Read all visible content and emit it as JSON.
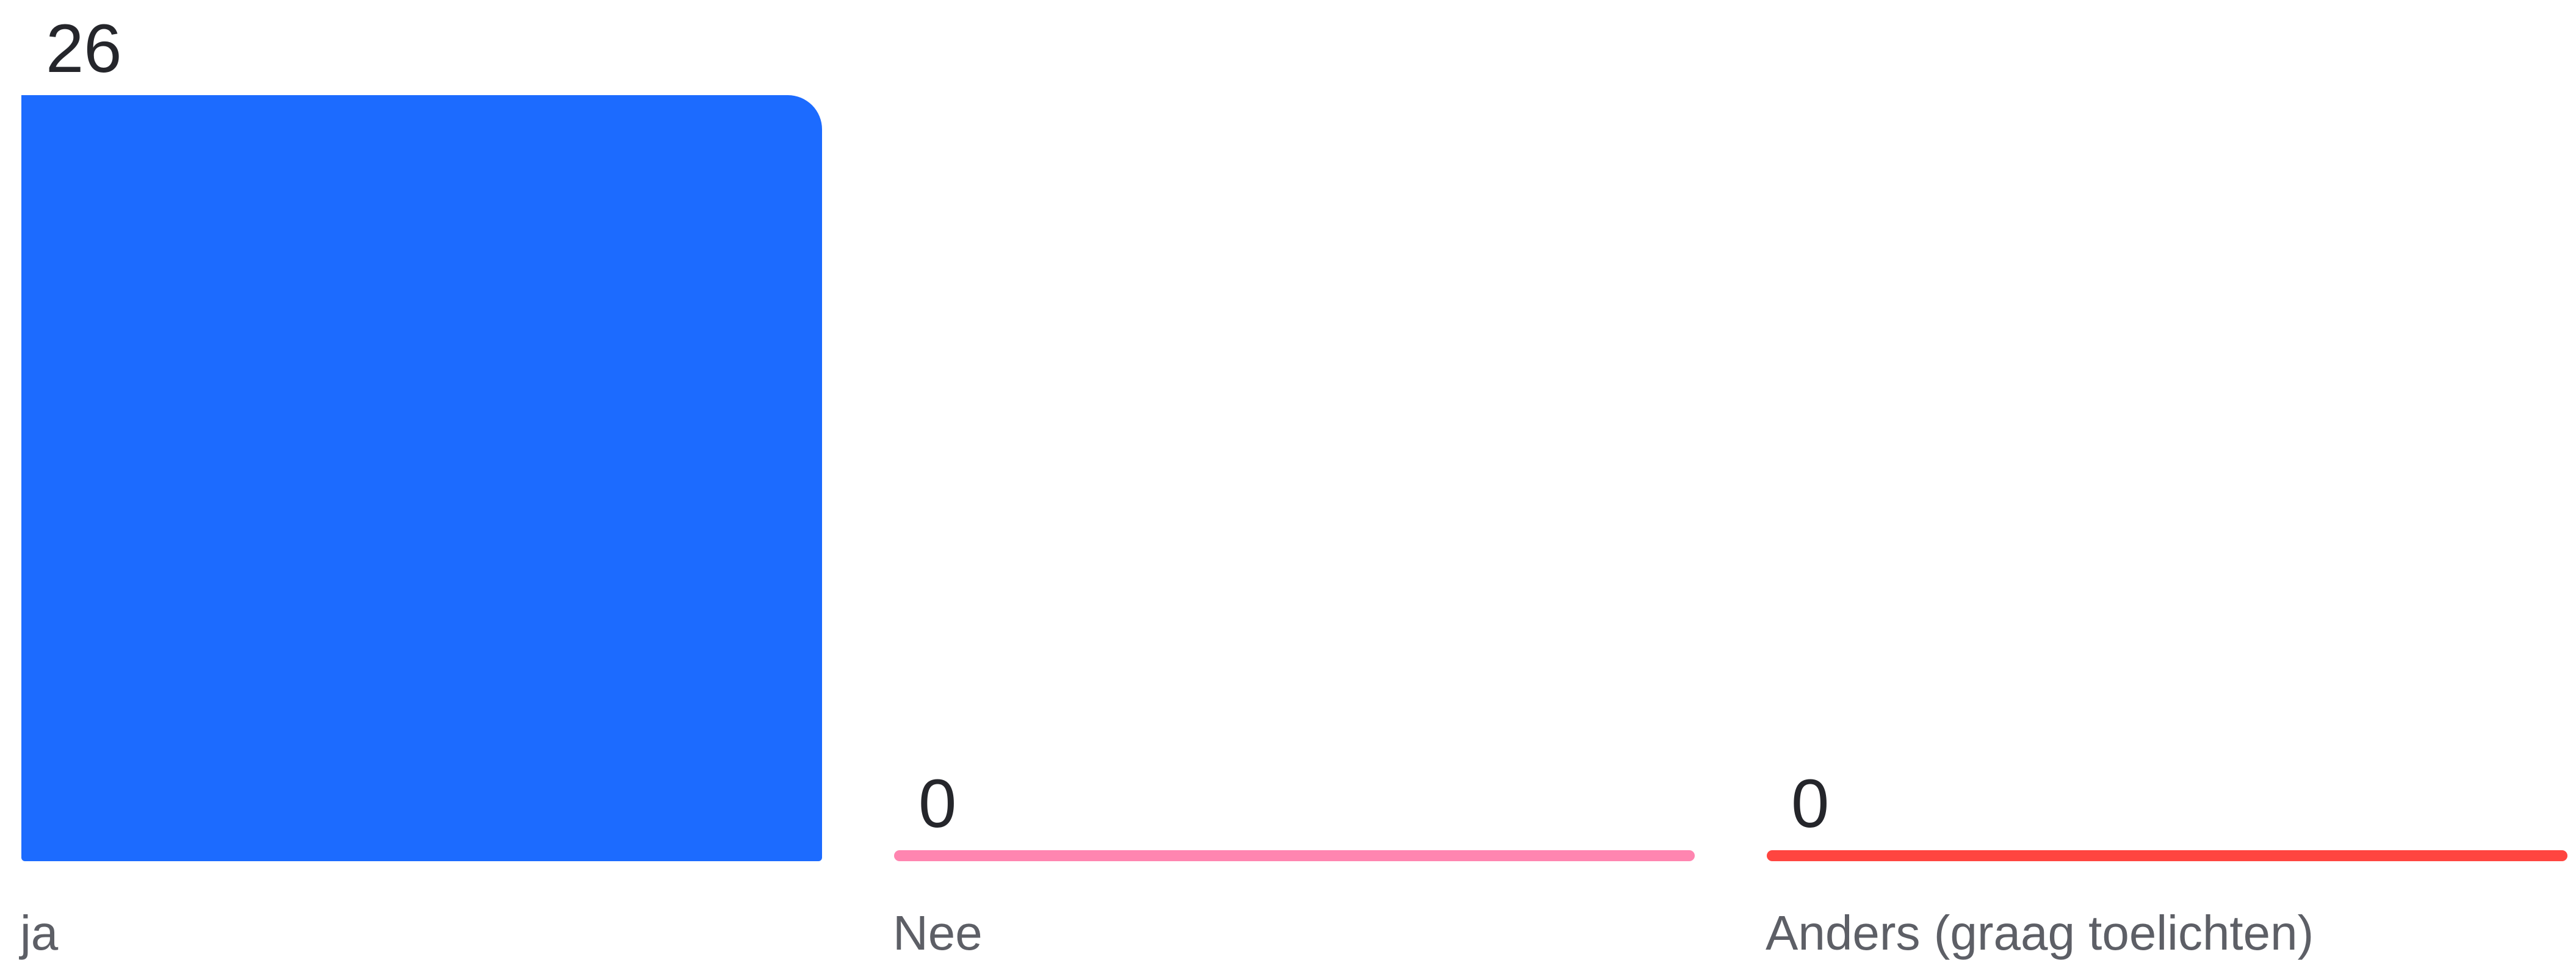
{
  "chart_data": {
    "type": "bar",
    "categories": [
      "ja",
      "Nee",
      "Anders (graag toelichten)"
    ],
    "values": [
      26,
      0,
      0
    ],
    "colors": [
      "#1c6bff",
      "#ff85b0",
      "#ff4540"
    ],
    "title": "",
    "xlabel": "",
    "ylabel": "",
    "ylim": [
      0,
      26
    ],
    "grid": false,
    "legend": "none"
  }
}
